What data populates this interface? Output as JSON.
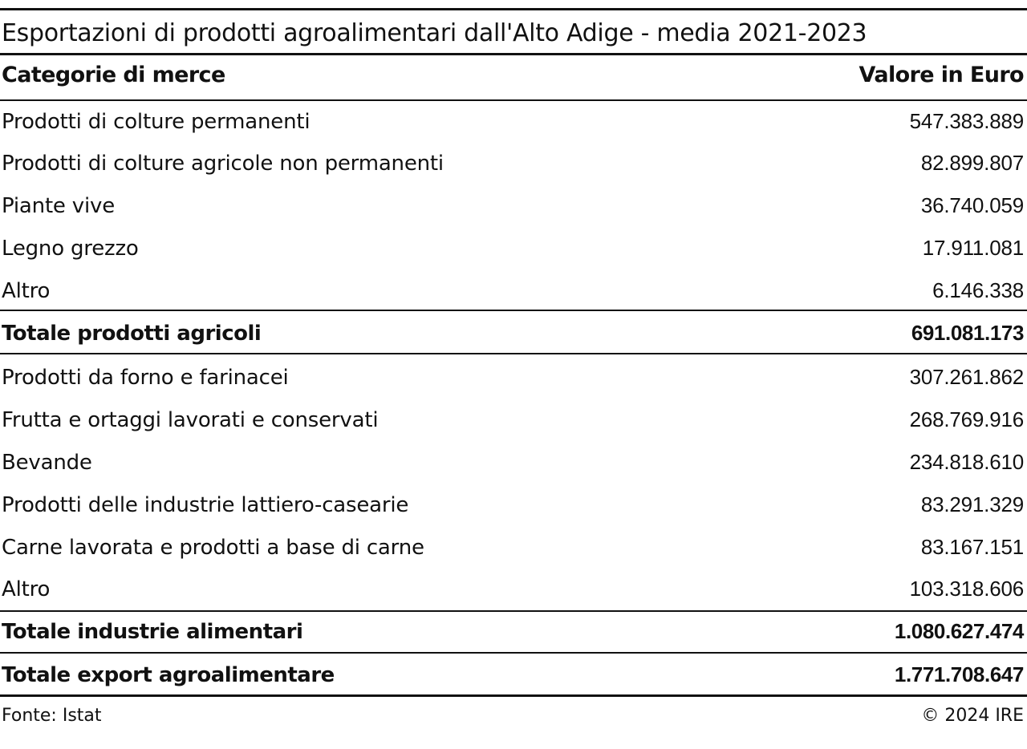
{
  "chart_data": {
    "type": "table",
    "title": "Esportazioni di prodotti agroalimentari dall'Alto Adige - media 2021-2023",
    "columns": [
      "Categorie di merce",
      "Valore in Euro"
    ],
    "rows": [
      {
        "label": "Prodotti di colture permanenti",
        "value": "547.383.889",
        "kind": "item"
      },
      {
        "label": "Prodotti di colture agricole non permanenti",
        "value": "82.899.807",
        "kind": "item"
      },
      {
        "label": "Piante vive",
        "value": "36.740.059",
        "kind": "item"
      },
      {
        "label": "Legno grezzo",
        "value": "17.911.081",
        "kind": "item"
      },
      {
        "label": "Altro",
        "value": "6.146.338",
        "kind": "item"
      },
      {
        "label": "Totale prodotti agricoli",
        "value": "691.081.173",
        "kind": "total"
      },
      {
        "label": "Prodotti da forno e farinacei",
        "value": "307.261.862",
        "kind": "item"
      },
      {
        "label": "Frutta e ortaggi lavorati e conservati",
        "value": "268.769.916",
        "kind": "item"
      },
      {
        "label": "Bevande",
        "value": "234.818.610",
        "kind": "item"
      },
      {
        "label": "Prodotti delle industrie lattiero-casearie",
        "value": "83.291.329",
        "kind": "item"
      },
      {
        "label": "Carne lavorata e prodotti a base di carne",
        "value": "83.167.151",
        "kind": "item"
      },
      {
        "label": "Altro",
        "value": "103.318.606",
        "kind": "item"
      },
      {
        "label": "Totale industrie alimentari",
        "value": "1.080.627.474",
        "kind": "total"
      },
      {
        "label": "Totale export agroalimentare",
        "value": "1.771.708.647",
        "kind": "total"
      }
    ]
  },
  "footer": {
    "source": "Fonte: Istat",
    "copyright": "© 2024 IRE"
  }
}
